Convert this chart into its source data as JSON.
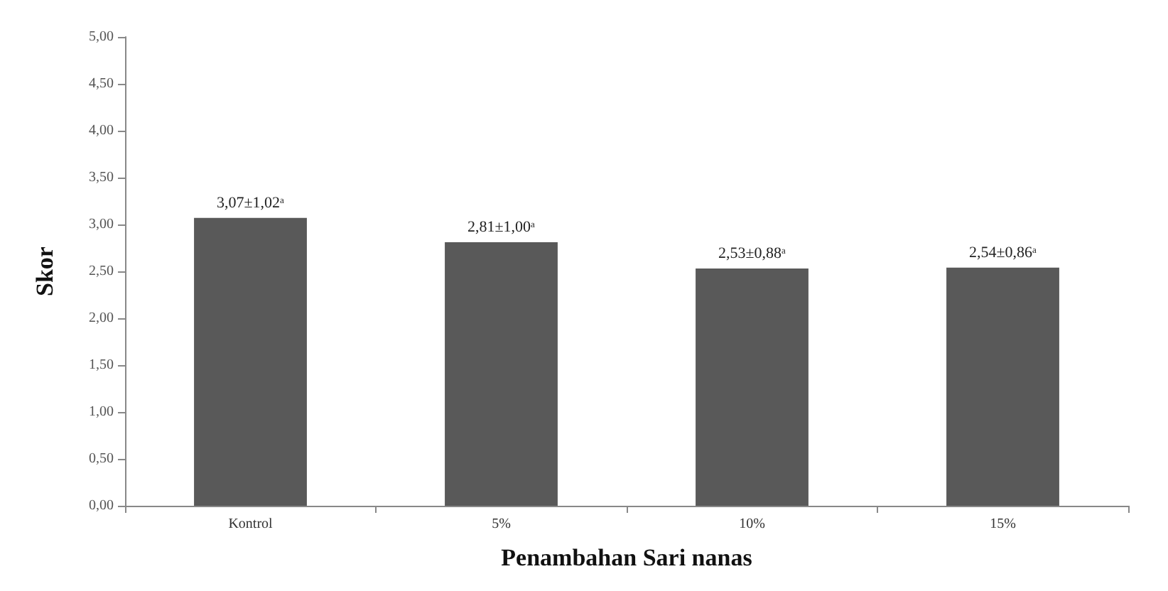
{
  "chart_data": {
    "type": "bar",
    "xlabel": "Penambahan Sari nanas",
    "ylabel": "Skor",
    "categories": [
      "Kontrol",
      "5%",
      "10%",
      "15%"
    ],
    "values": [
      3.07,
      2.81,
      2.53,
      2.54
    ],
    "value_labels": [
      "3,07±1,02ᵃ",
      "2,81±1,00ᵃ",
      "2,53±0,88ᵃ",
      "2,54±0,86ᵃ"
    ],
    "color": "#595959",
    "ylim": [
      0,
      5
    ],
    "yticks": [
      {
        "value": 0,
        "label": "0,00"
      },
      {
        "value": 0.5,
        "label": "0,50"
      },
      {
        "value": 1,
        "label": "1,00"
      },
      {
        "value": 1.5,
        "label": "1,50"
      },
      {
        "value": 2,
        "label": "2,00"
      },
      {
        "value": 2.5,
        "label": "2,50"
      },
      {
        "value": 3,
        "label": "3,00"
      },
      {
        "value": 3.5,
        "label": "3,50"
      },
      {
        "value": 4,
        "label": "4,00"
      },
      {
        "value": 4.5,
        "label": "4,50"
      },
      {
        "value": 5,
        "label": "5,00"
      }
    ],
    "grid": false
  }
}
